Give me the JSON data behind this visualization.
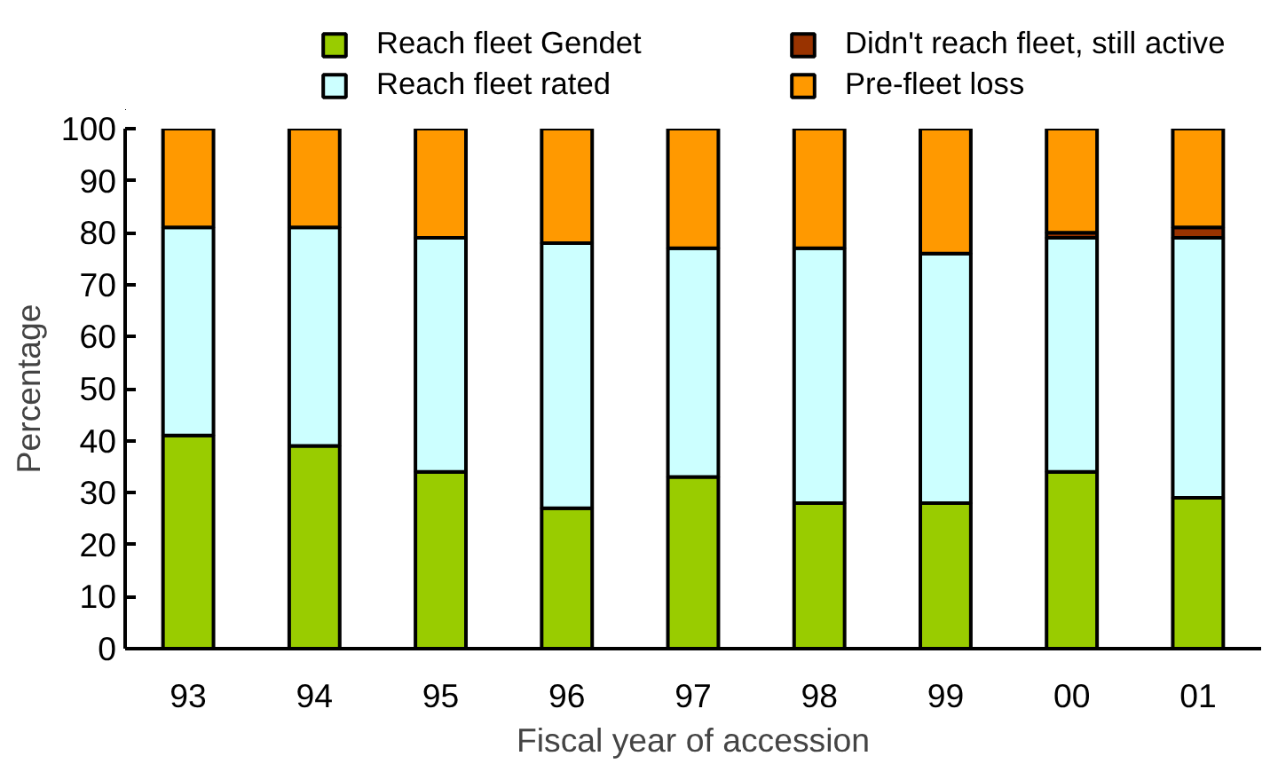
{
  "chart_data": {
    "type": "bar",
    "stacked": true,
    "xlabel": "Fiscal year of accession",
    "ylabel": "Percentage",
    "categories": [
      "93",
      "94",
      "95",
      "96",
      "97",
      "98",
      "99",
      "00",
      "01"
    ],
    "series": [
      {
        "name": "Reach fleet Gendet",
        "color": "#99cc00",
        "values": [
          41,
          39,
          34,
          27,
          33,
          28,
          28,
          34,
          29
        ]
      },
      {
        "name": "Reach fleet rated",
        "color": "#ccffff",
        "values": [
          40,
          42,
          45,
          51,
          44,
          49,
          48,
          45,
          50
        ]
      },
      {
        "name": "Didn't reach fleet, still active",
        "color": "#993300",
        "values": [
          0,
          0,
          0,
          0,
          0,
          0,
          0,
          1,
          2
        ]
      },
      {
        "name": "Pre-fleet loss",
        "color": "#ff9900",
        "values": [
          19,
          19,
          21,
          22,
          23,
          23,
          24,
          20,
          19
        ]
      }
    ],
    "ylim": [
      0,
      100
    ],
    "yticks": [
      0,
      10,
      20,
      30,
      40,
      50,
      60,
      70,
      80,
      90,
      100
    ],
    "grid": false,
    "legend": "top"
  }
}
